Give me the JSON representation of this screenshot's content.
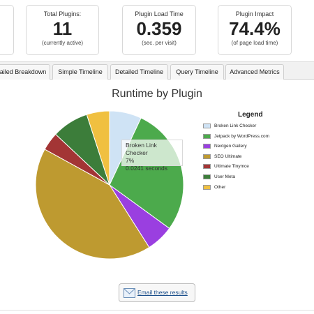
{
  "stats": [
    {
      "label": "Total Plugins:",
      "value": "11",
      "sub": "(currently active)"
    },
    {
      "label": "Plugin Load Time",
      "value": "0.359",
      "sub": "(sec. per visit)"
    },
    {
      "label": "Plugin Impact",
      "value": "74.4%",
      "sub": "(of page load time)"
    }
  ],
  "tabs": [
    "ailed Breakdown",
    "Simple Timeline",
    "Detailed Timeline",
    "Query Timeline",
    "Advanced Metrics"
  ],
  "chart_data": {
    "type": "pie",
    "title": "Runtime by Plugin",
    "legend_title": "Legend",
    "legend_position": "right",
    "categories": [
      "Broken Link Checker",
      "Jetpack by WordPress.com",
      "Nextgen Gallery",
      "SEO Ultimate",
      "Ultimate Tinymce",
      "User Meta",
      "Other"
    ],
    "values": [
      7,
      28,
      6,
      42,
      4,
      8,
      5
    ],
    "colors": [
      "#cfe3f5",
      "#4caa4c",
      "#9a3fe0",
      "#be9a30",
      "#a33535",
      "#3c7d3a",
      "#f0c040"
    ],
    "tooltip": {
      "label": "Broken Link Checker",
      "percent": "7%",
      "time": "0.0241 seconds"
    }
  },
  "email_button": {
    "label": "Email these results",
    "icon": "envelope-icon"
  }
}
